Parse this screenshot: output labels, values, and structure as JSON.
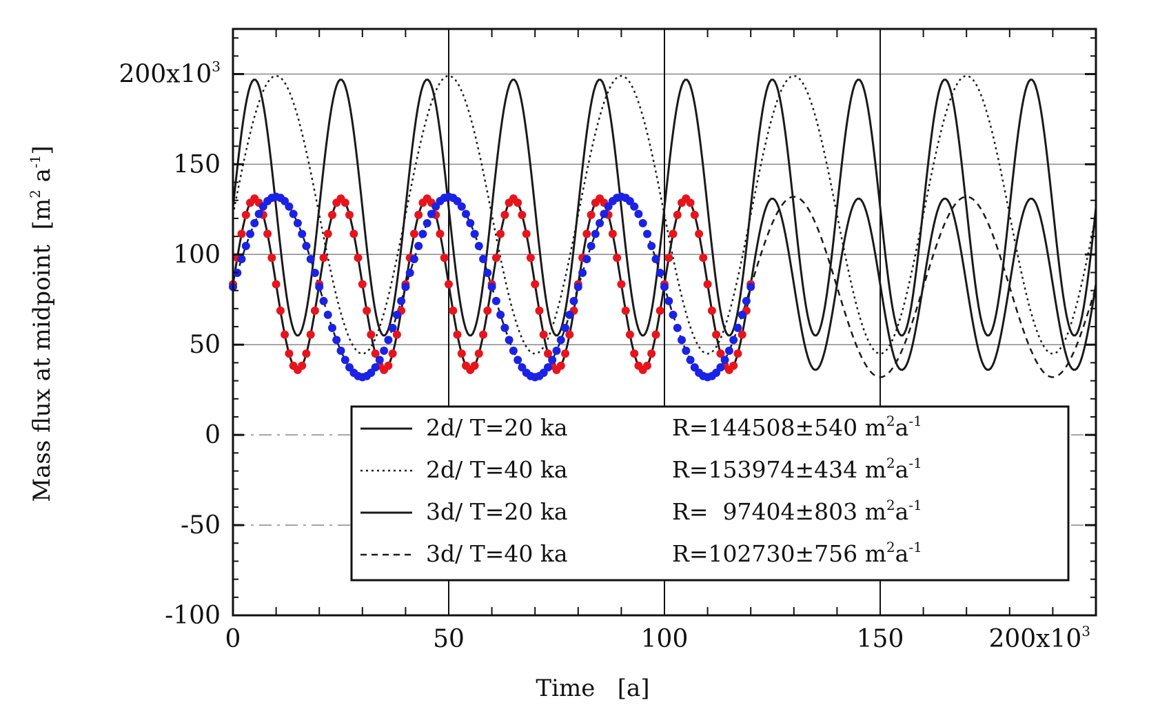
{
  "chart_data": {
    "type": "line",
    "xlabel": "Time   [a]",
    "ylabel": "Mass flux at midpoint  [m",
    "ylabel_unit": {
      "sup1": "2",
      "mid": " a",
      "sup2": "-1",
      "end": "]"
    },
    "xlim": [
      0,
      200000
    ],
    "ylim": [
      -100000,
      225000
    ],
    "x_ticks": [
      0,
      50000,
      100000,
      150000,
      200000
    ],
    "x_tick_labels": [
      "0",
      "50",
      "100",
      "150",
      "200x10"
    ],
    "x_tick_exp": "3",
    "y_ticks": [
      -100000,
      -50000,
      0,
      50000,
      100000,
      150000,
      200000
    ],
    "y_tick_labels": [
      "-100",
      "-50",
      "0",
      "50",
      "100",
      "150",
      "200x10"
    ],
    "y_tick_exp": "3",
    "grid": true,
    "legend_position": "bottom-center",
    "series": [
      {
        "name": "2d/ T=20 ka",
        "style": "solid",
        "period": 20000,
        "min": 55000,
        "max": 197000,
        "peak_at": 5000,
        "x_range": [
          0,
          200000
        ],
        "stat": "R=144508±540 m",
        "stat_unit": {
          "sup1": "2",
          "mid": "a",
          "sup2": "-1"
        }
      },
      {
        "name": "2d/ T=40 ka",
        "style": "dotted",
        "period": 40000,
        "min": 45000,
        "max": 199000,
        "peak_at": 10000,
        "x_range": [
          0,
          200000
        ],
        "stat": "R=153974±434 m",
        "stat_unit": {
          "sup1": "2",
          "mid": "a",
          "sup2": "-1"
        }
      },
      {
        "name": "3d/ T=20 ka",
        "style": "solid",
        "period": 20000,
        "min": 36000,
        "max": 131000,
        "peak_at": 5000,
        "x_range": [
          0,
          200000
        ],
        "stat": "R=  97404±803 m",
        "stat_unit": {
          "sup1": "2",
          "mid": "a",
          "sup2": "-1"
        }
      },
      {
        "name": "3d/ T=40 ka",
        "style": "dashed",
        "period": 40000,
        "min": 32000,
        "max": 132000,
        "peak_at": 10000,
        "x_range": [
          0,
          200000
        ],
        "stat": "R=102730±756 m",
        "stat_unit": {
          "sup1": "2",
          "mid": "a",
          "sup2": "-1"
        }
      }
    ],
    "overlays": [
      {
        "color": "#e8141c",
        "period": 20000,
        "min": 36000,
        "max": 131000,
        "peak_at": 5000,
        "x_range": [
          0,
          120000
        ],
        "step": 1000
      },
      {
        "color": "#1a22e6",
        "period": 40000,
        "min": 32000,
        "max": 132000,
        "peak_at": 10000,
        "x_range": [
          0,
          120000
        ],
        "step": 1000
      }
    ]
  }
}
